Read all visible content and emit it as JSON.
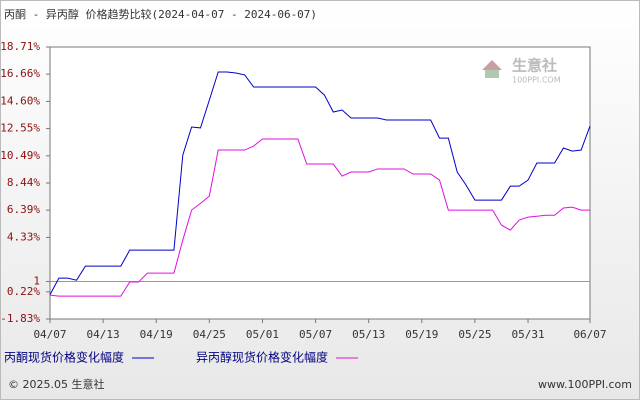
{
  "chart_data": {
    "type": "line",
    "title": "丙酮 - 异丙醇 价格趋势比较(2024-04-07 - 2024-06-07)",
    "categories": [
      "04/07",
      null,
      null,
      null,
      null,
      null,
      "04/13",
      null,
      null,
      null,
      null,
      null,
      "04/19",
      null,
      null,
      null,
      null,
      null,
      "04/25",
      null,
      null,
      null,
      null,
      null,
      "05/01",
      null,
      null,
      null,
      null,
      null,
      "05/07",
      null,
      null,
      null,
      null,
      null,
      "05/13",
      null,
      null,
      null,
      null,
      null,
      "05/19",
      null,
      null,
      null,
      null,
      null,
      "05/25",
      null,
      null,
      null,
      null,
      null,
      "05/31",
      null,
      null,
      null,
      null,
      null,
      null,
      "06/07"
    ],
    "series": [
      {
        "name": "丙酮现货价格变化幅度",
        "color": "#0000cc",
        "values": [
          0,
          1.26,
          1.26,
          1.1,
          2.16,
          2.16,
          2.16,
          2.16,
          2.16,
          3.37,
          3.37,
          3.37,
          3.37,
          3.37,
          3.37,
          10.55,
          12.67,
          12.6,
          14.7,
          16.82,
          16.82,
          16.75,
          16.6,
          15.69,
          15.69,
          15.69,
          15.69,
          15.69,
          15.69,
          15.69,
          15.69,
          15.08,
          13.8,
          13.95,
          13.35,
          13.35,
          13.35,
          13.35,
          13.2,
          13.2,
          13.2,
          13.2,
          13.2,
          13.2,
          11.83,
          11.83,
          9.27,
          8.28,
          7.15,
          7.15,
          7.15,
          7.15,
          8.2,
          8.2,
          8.66,
          9.95,
          9.95,
          9.95,
          11.08,
          10.85,
          10.93,
          12.74
        ]
      },
      {
        "name": "异丙醇现货价格变化幅度",
        "color": "#e010e0",
        "values": [
          -0.03,
          -0.1,
          -0.1,
          -0.1,
          -0.1,
          -0.1,
          -0.1,
          -0.1,
          -0.1,
          0.96,
          0.96,
          1.63,
          1.63,
          1.63,
          1.63,
          4.13,
          6.4,
          6.9,
          7.45,
          10.93,
          10.93,
          10.93,
          10.93,
          11.23,
          11.76,
          11.76,
          11.76,
          11.76,
          11.76,
          9.87,
          9.87,
          9.87,
          9.87,
          8.96,
          9.27,
          9.27,
          9.27,
          9.5,
          9.5,
          9.5,
          9.5,
          9.12,
          9.12,
          9.12,
          8.66,
          6.39,
          6.39,
          6.39,
          6.39,
          6.39,
          6.39,
          5.26,
          4.88,
          5.64,
          5.86,
          5.93,
          6.0,
          6.0,
          6.55,
          6.62,
          6.39,
          6.39
        ]
      }
    ],
    "ylim": [
      -1.83,
      18.71
    ],
    "yticks": [
      {
        "value": 18.71,
        "label": "18.71%"
      },
      {
        "value": 16.66,
        "label": "16.66%"
      },
      {
        "value": 14.6,
        "label": "14.60%"
      },
      {
        "value": 12.55,
        "label": "12.55%"
      },
      {
        "value": 10.49,
        "label": "10.49%"
      },
      {
        "value": 8.44,
        "label": "8.44%"
      },
      {
        "value": 6.39,
        "label": "6.39%"
      },
      {
        "value": 4.33,
        "label": "4.33%"
      },
      1,
      {
        "value": 0.22,
        "label": "0.22%"
      },
      {
        "value": -1.83,
        "label": "-1.83%"
      }
    ],
    "reference_line": 1,
    "grid": false,
    "legend": "bottom",
    "watermark": "生意社",
    "watermark_sub": "100PPI.COM",
    "footer_left": "© 2025.05 生意社",
    "footer_right": "www.100PPI.com"
  }
}
